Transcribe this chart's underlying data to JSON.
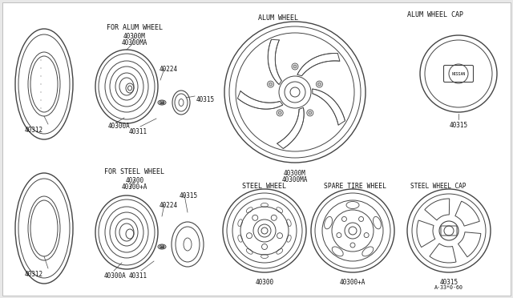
{
  "bg_color": "#e8e8e8",
  "line_color": "#444444",
  "labels": {
    "for_alum_wheel": "FOR ALUM WHEEL",
    "for_steel_wheel": "FOR STEEL WHEEL",
    "alum_wheel": "ALUM WHEEL",
    "alum_wheel_cap": "ALUM WHEEL CAP",
    "steel_wheel": "STEEL WHEEL",
    "spare_tire_wheel": "SPARE TIRE WHEEL",
    "steel_wheel_cap": "STEEL WHEEL CAP"
  },
  "parts": {
    "40312": "40312",
    "40300M": "40300M",
    "40300MA": "40300MA",
    "40224": "40224",
    "40300A": "40300A",
    "40311": "40311",
    "40315": "40315",
    "40300": "40300",
    "40300pA": "40300+A",
    "footnote": "A·33*0·60"
  }
}
